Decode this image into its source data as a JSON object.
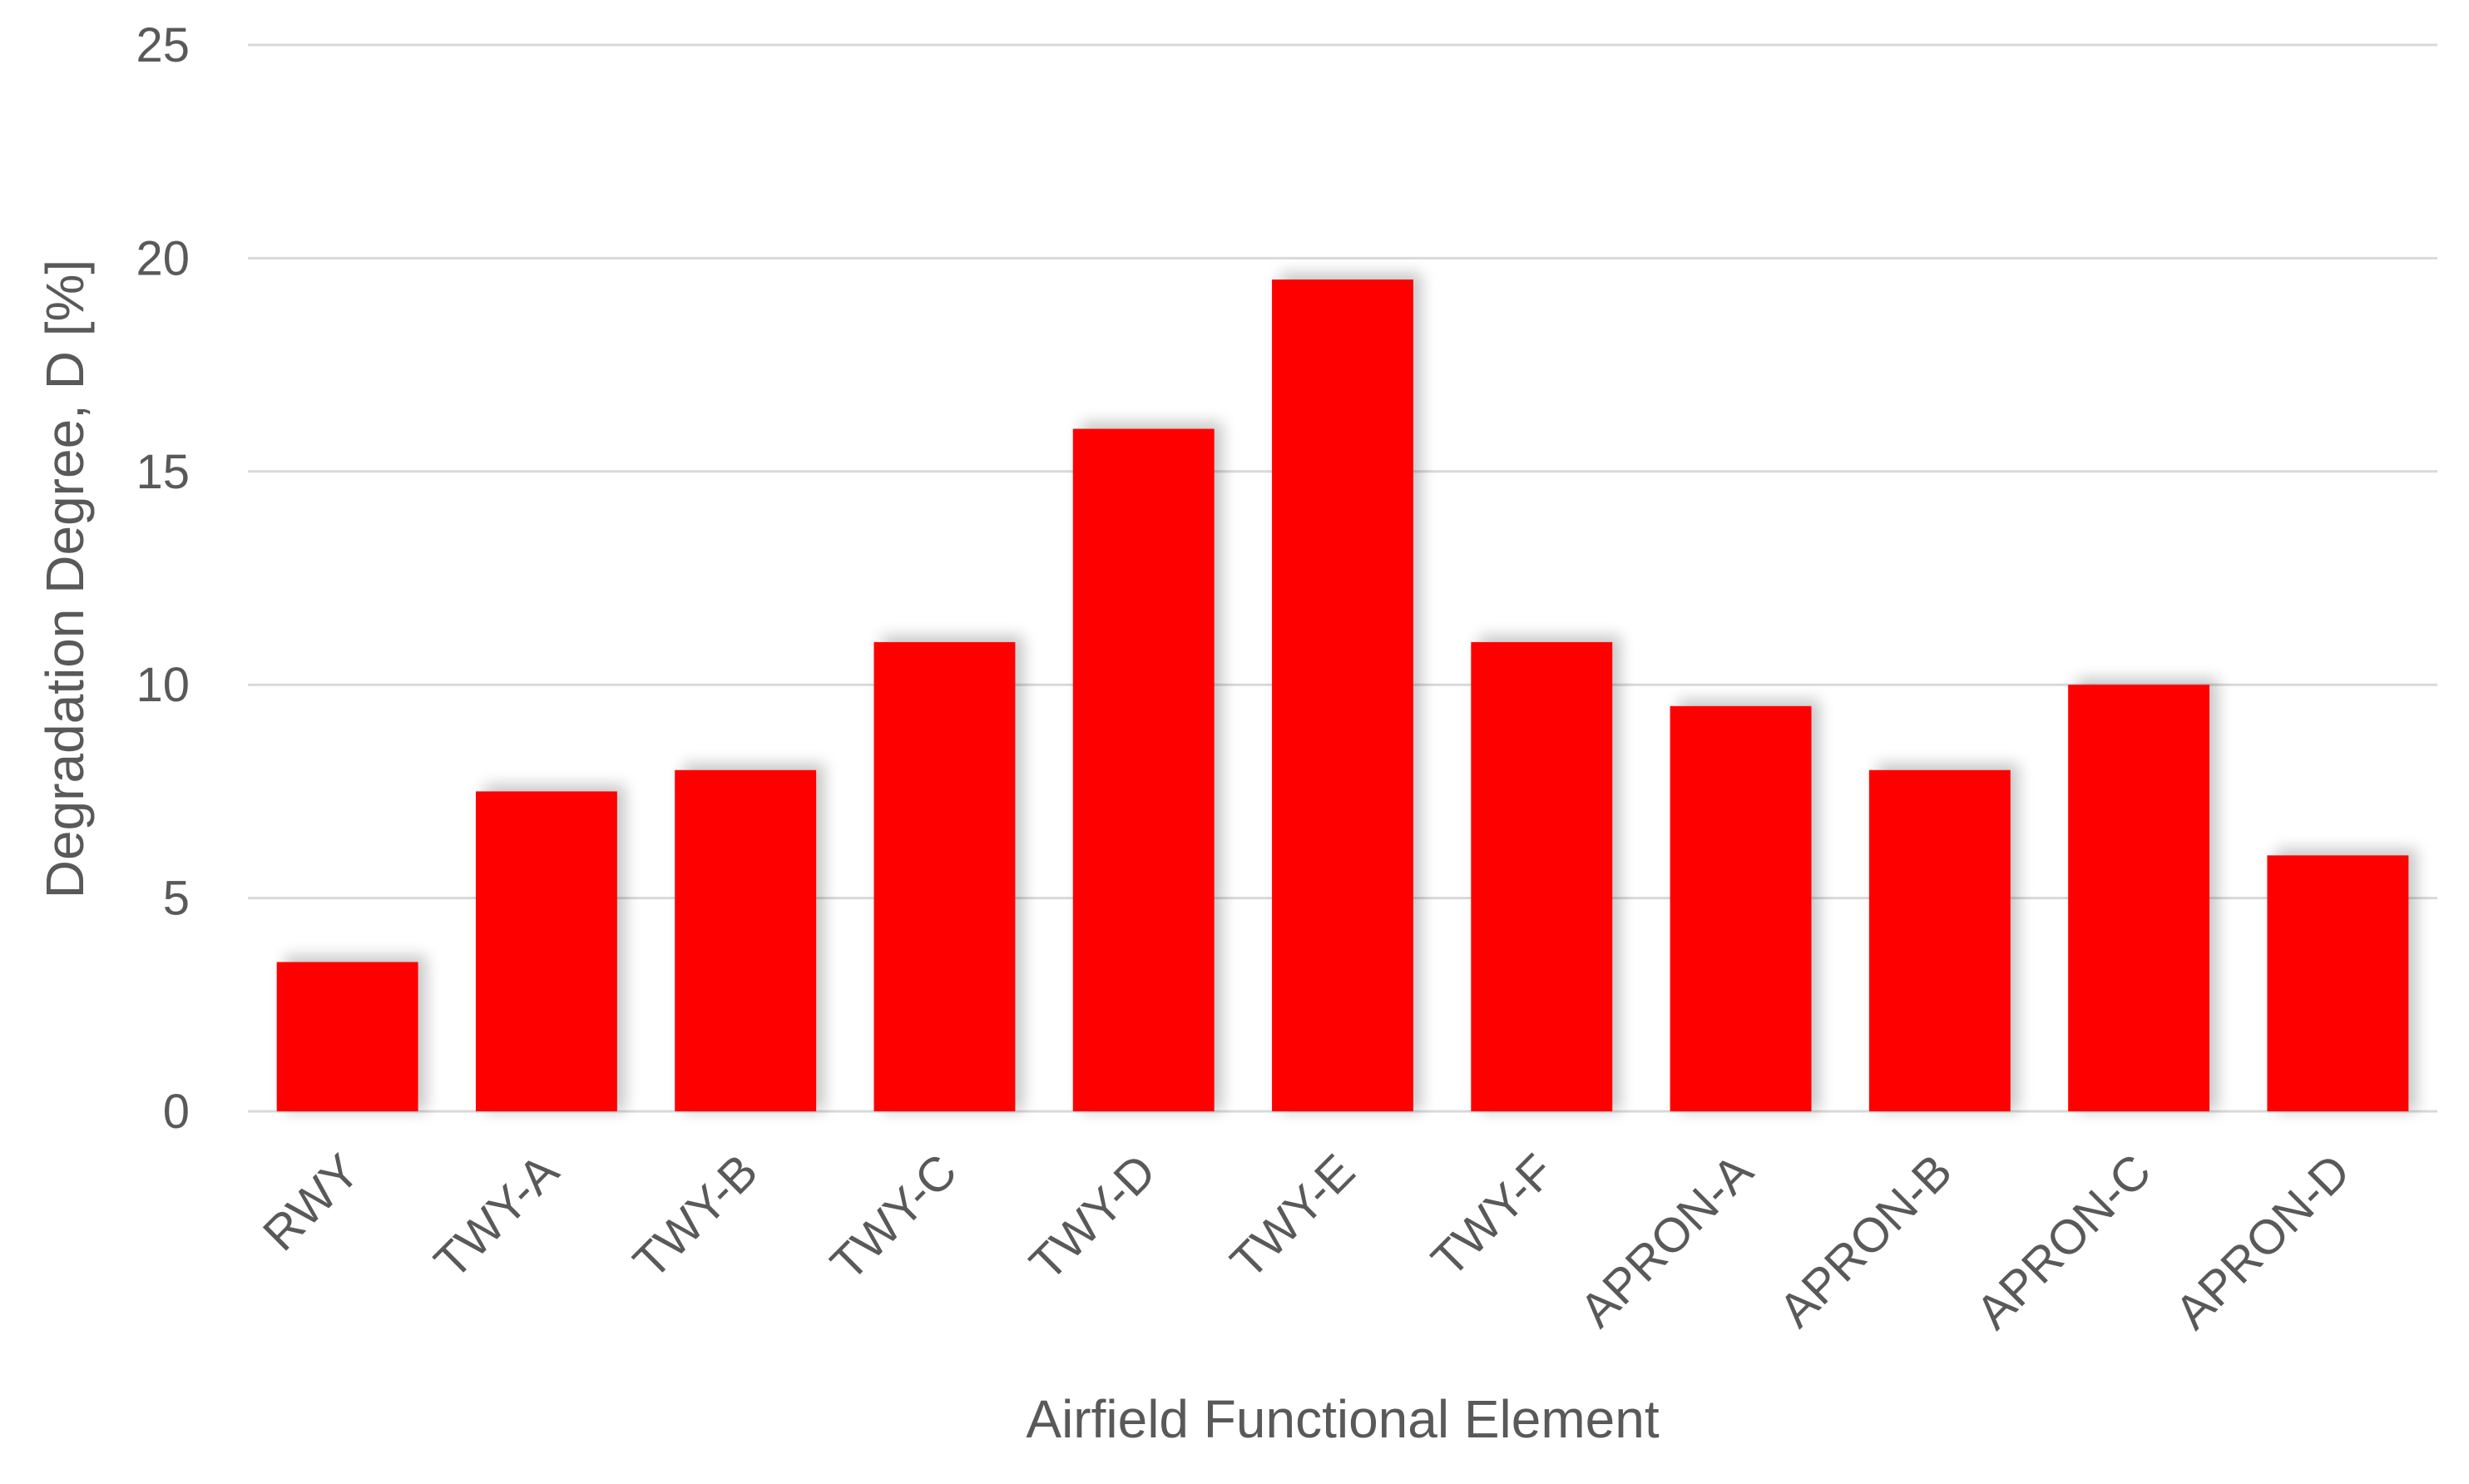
{
  "chart_data": {
    "type": "bar",
    "categories": [
      "RWY",
      "TWY-A",
      "TWY-B",
      "TWY-C",
      "TWY-D",
      "TWY-E",
      "TWY-F",
      "APRON-A",
      "APRON-B",
      "APRON-C",
      "APRON-D"
    ],
    "series": [
      {
        "values": [
          3.5,
          7.5,
          8,
          11,
          16,
          19.5,
          11,
          9.5,
          8,
          10,
          6
        ],
        "color": "#ff0000"
      }
    ],
    "xlabel": "Airfield Functional Element",
    "ylabel": "Degradation Degree, D [%]",
    "ylim": [
      0,
      25
    ],
    "yticks": [
      0,
      5,
      10,
      15,
      20,
      25
    ],
    "grid": true,
    "legend": "none",
    "bar_shadow": true,
    "x_tick_rotation_deg": -45
  }
}
